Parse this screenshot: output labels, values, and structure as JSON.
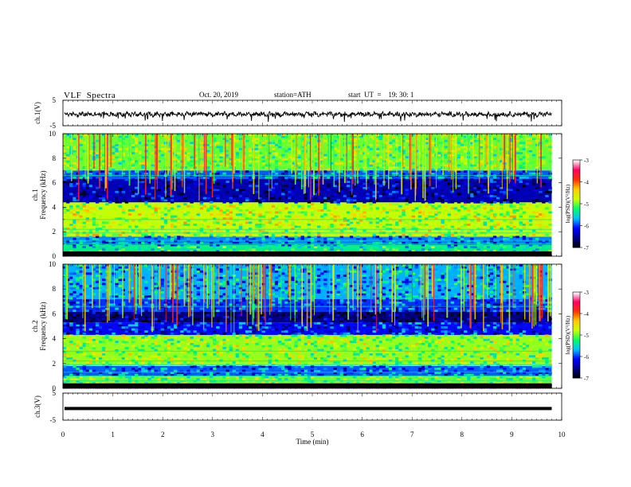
{
  "header": {
    "title": "VLF  Spectra",
    "date": "Oct. 20, 2019",
    "station": "station=ATH",
    "start": "start  UT  =    19: 30: 1"
  },
  "chart_data": [
    {
      "type": "line",
      "panel": "ch1-waveform",
      "ylabel": "ch.1(V)",
      "ylim": [
        -5,
        5
      ],
      "yticks": [
        "5",
        "-5"
      ],
      "xlim": [
        0,
        10
      ],
      "series": [
        {
          "values_mean": -0.5,
          "values_range": [
            -2,
            1.5
          ]
        }
      ]
    },
    {
      "type": "heatmap",
      "panel": "ch1-spectrogram",
      "ylabel": "ch.1\nFrequency (kHz)",
      "ylim": [
        0,
        10
      ],
      "yticks": [
        "0",
        "2",
        "4",
        "6",
        "8",
        "10"
      ],
      "xlim": [
        0,
        9.8
      ],
      "bands": [
        {
          "from": 0,
          "to": 0.4,
          "level": -7
        },
        {
          "from": 0.4,
          "to": 0.9,
          "level": -5.3
        },
        {
          "from": 0.9,
          "to": 1.6,
          "level": -5.8
        },
        {
          "from": 1.6,
          "to": 4.4,
          "level": -4.8
        },
        {
          "from": 4.4,
          "to": 6.3,
          "level": -6.4
        },
        {
          "from": 6.3,
          "to": 7.0,
          "level": -5.9
        },
        {
          "from": 7.0,
          "to": 10,
          "level": -5.0
        }
      ]
    },
    {
      "type": "heatmap",
      "panel": "ch2-spectrogram",
      "ylabel": "ch.2\nFrequency (kHz)",
      "ylim": [
        0,
        10
      ],
      "yticks": [
        "0",
        "2",
        "4",
        "6",
        "8",
        "10"
      ],
      "xlim": [
        0,
        9.8
      ],
      "bands": [
        {
          "from": 0,
          "to": 0.4,
          "level": -7
        },
        {
          "from": 0.4,
          "to": 1.0,
          "level": -5.0
        },
        {
          "from": 1.0,
          "to": 1.8,
          "level": -5.9
        },
        {
          "from": 1.8,
          "to": 4.3,
          "level": -4.9
        },
        {
          "from": 4.3,
          "to": 5.3,
          "level": -6.1
        },
        {
          "from": 5.3,
          "to": 6.2,
          "level": -6.6
        },
        {
          "from": 6.2,
          "to": 7.2,
          "level": -6.0
        },
        {
          "from": 7.2,
          "to": 10,
          "level": -5.7
        }
      ]
    },
    {
      "type": "line",
      "panel": "ch3-waveform",
      "ylabel": "ch.3(V)",
      "ylim": [
        -5,
        5
      ],
      "yticks": [
        "5",
        "-5"
      ],
      "xlim": [
        0,
        10
      ],
      "xlabel": "Time  (min)",
      "xticks": [
        "0",
        "1",
        "2",
        "3",
        "4",
        "5",
        "6",
        "7",
        "8",
        "9",
        "10"
      ],
      "series": [
        {
          "values_mean": -0.7
        }
      ]
    }
  ],
  "colorbar": {
    "label": "log(PSD)(V²/Hz)",
    "range": [
      -7,
      -3
    ],
    "ticks": [
      "-3",
      "-4",
      "-5",
      "-6",
      "-7"
    ],
    "colors": [
      "#000000",
      "#00008b",
      "#0000ff",
      "#00bfff",
      "#00ff66",
      "#ccff00",
      "#ffcc00",
      "#ff3300",
      "#ff0066",
      "#ffffff"
    ]
  }
}
